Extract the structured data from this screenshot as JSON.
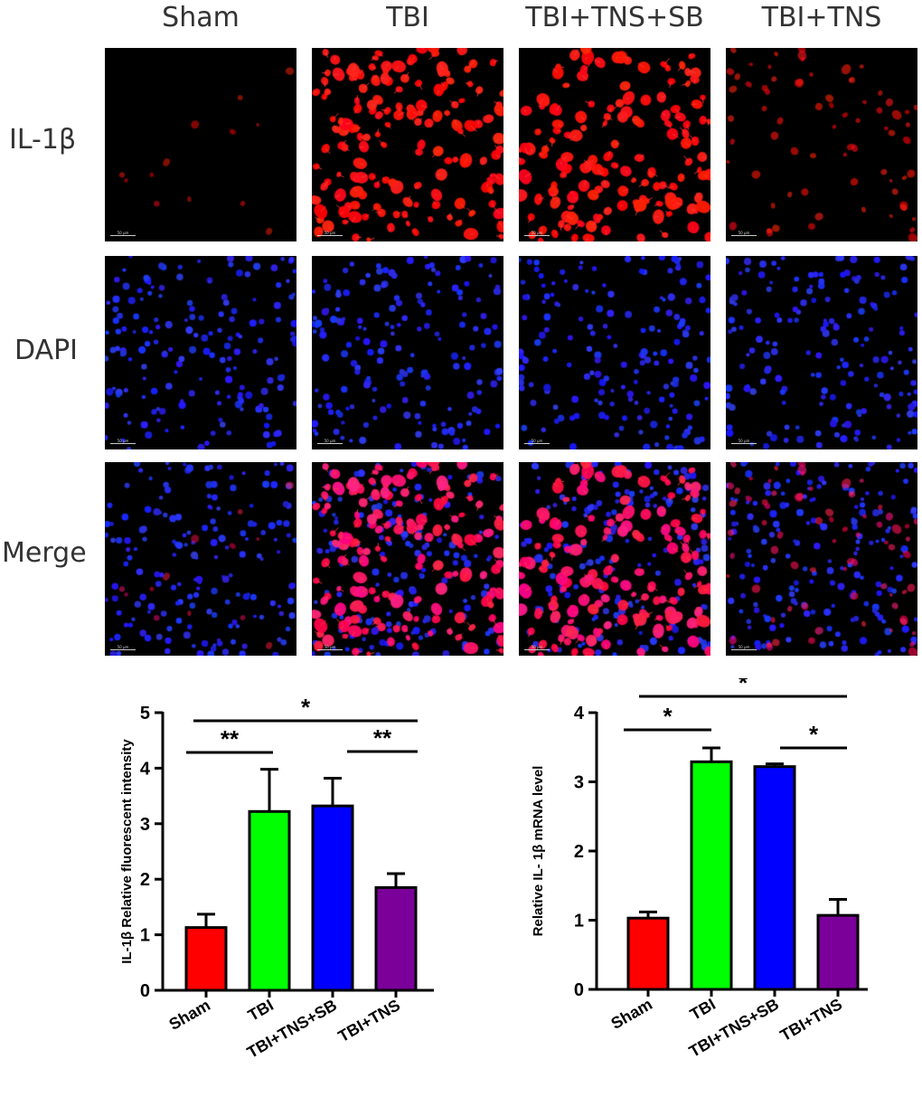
{
  "column_headers": [
    "Sham",
    "TBI",
    "TBI+TNS+SB",
    "TBI+TNS"
  ],
  "row_headers": [
    "IL-1β",
    "DAPI",
    "Merge"
  ],
  "micrographs": {
    "IL-1β": {
      "stain": "red",
      "density": [
        0.08,
        1.0,
        0.95,
        0.45
      ]
    },
    "DAPI": {
      "stain": "blue",
      "density": [
        1.0,
        1.0,
        1.0,
        1.0
      ]
    },
    "Merge": {
      "stain": "red+blue",
      "density": [
        0.08,
        1.0,
        0.95,
        0.45
      ]
    }
  },
  "scale_bar_label": "50 μm",
  "colors": {
    "Sham": "#ff0000",
    "TBI": "#00ff00",
    "TBI+TNS+SB": "#0000ff",
    "TBI+TNS": "#7b0099"
  },
  "chart_data": [
    {
      "type": "bar",
      "categories": [
        "Sham",
        "TBI",
        "TBI+TNS+SB",
        "TBI+TNS"
      ],
      "values": [
        1.13,
        3.22,
        3.32,
        1.85
      ],
      "errors": [
        0.24,
        0.76,
        0.5,
        0.25
      ],
      "ylabel": "IL-1β Relative fluorescent intensity",
      "ylim": [
        0,
        5
      ],
      "yticks": [
        "0",
        "1",
        "2",
        "3",
        "4",
        "5"
      ],
      "significance": [
        {
          "from": "Sham",
          "to": "TBI",
          "label": "**"
        },
        {
          "from": "TBI",
          "to": "TBI+TNS",
          "label": "*"
        },
        {
          "from": "TBI+TNS+SB",
          "to": "TBI+TNS",
          "label": "**"
        }
      ]
    },
    {
      "type": "bar",
      "categories": [
        "Sham",
        "TBI",
        "TBI+TNS+SB",
        "TBI+TNS"
      ],
      "values": [
        1.03,
        3.29,
        3.22,
        1.07
      ],
      "errors": [
        0.09,
        0.2,
        0.04,
        0.23
      ],
      "ylabel": "Relative IL- 1β  mRNA level",
      "ylim": [
        0,
        4
      ],
      "yticks": [
        "0",
        "1",
        "2",
        "3",
        "4"
      ],
      "significance": [
        {
          "from": "Sham",
          "to": "TBI",
          "label": "*"
        },
        {
          "from": "TBI",
          "to": "TBI+TNS",
          "label": "*"
        },
        {
          "from": "TBI+TNS+SB",
          "to": "TBI+TNS",
          "label": "*"
        }
      ]
    }
  ]
}
